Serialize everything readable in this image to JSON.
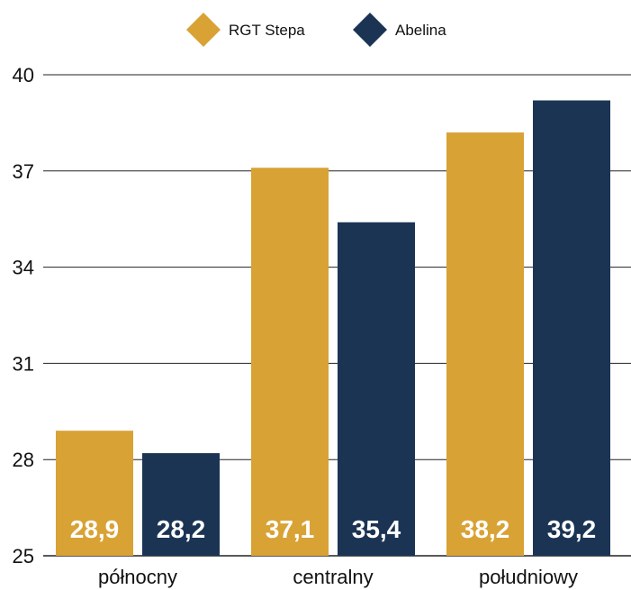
{
  "chart_data": {
    "type": "bar",
    "categories": [
      "północny",
      "centralny",
      "południowy"
    ],
    "series": [
      {
        "name": "RGT Stepa",
        "values": [
          28.9,
          37.1,
          38.2
        ],
        "labels": [
          "28,9",
          "37,1",
          "38,2"
        ],
        "color": "#d9a235"
      },
      {
        "name": "Abelina",
        "values": [
          28.2,
          35.4,
          39.2
        ],
        "labels": [
          "28,2",
          "35,4",
          "39,2"
        ],
        "color": "#1b3454"
      }
    ],
    "ylim": [
      25,
      40
    ],
    "yticks": [
      25,
      28,
      31,
      34,
      37,
      40
    ],
    "grid": true,
    "legend": "top-center"
  }
}
